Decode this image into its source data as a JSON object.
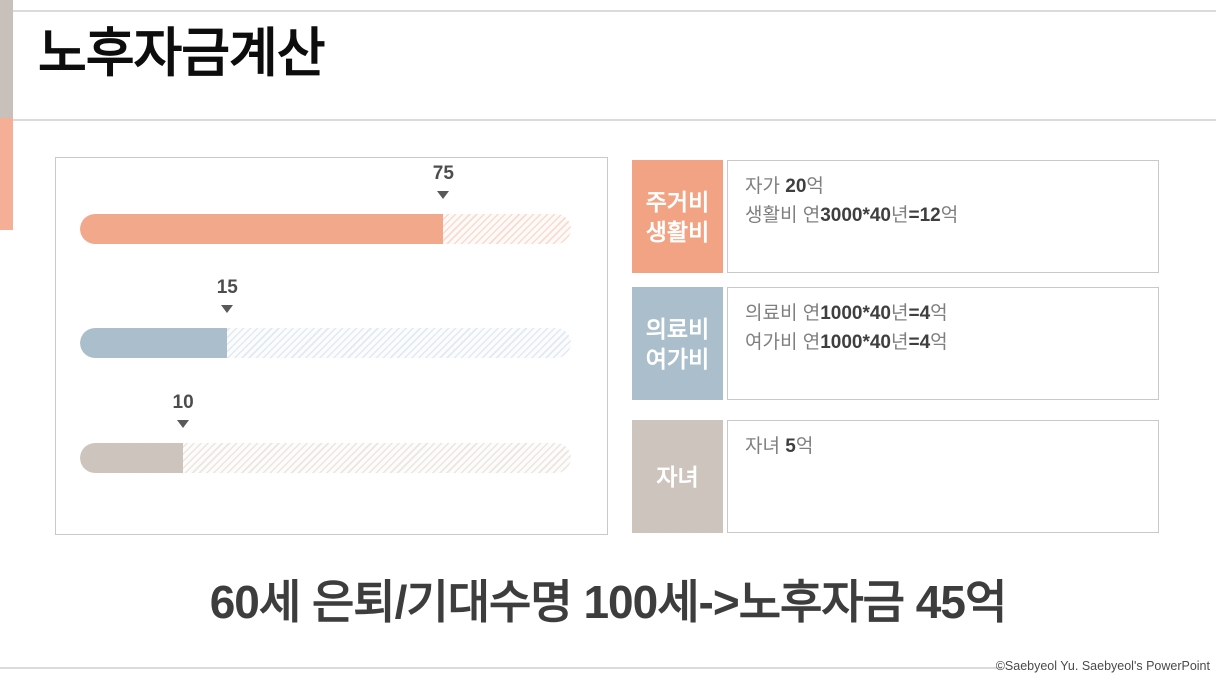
{
  "title": "노후자금계산",
  "summary": "60세 은퇴/기대수명 100세->노후자금 45억",
  "copyright": "©Saebyeol Yu.  Saebyeol's PowerPoint",
  "colors": {
    "salmon": "#F2A88B",
    "bluegray": "#AABFCB",
    "tan": "#CDC5BD",
    "accent_gray": "#C8C0BB",
    "accent_salmon": "#F5AF97",
    "divider": "#DBDBDB",
    "panel_border": "#C9C9C9",
    "text_dark": "#3F3F3F",
    "text_gray": "#7F7F7F",
    "marker": "#595959"
  },
  "chart_data": {
    "type": "bar",
    "orientation": "horizontal",
    "track_range": [
      0,
      100
    ],
    "grid": false,
    "items": [
      {
        "label": "75",
        "value": 75,
        "fill_pct": 74,
        "color": "#F2A88B",
        "hatch": "#F6DCD0",
        "hatch_bg": "#FEFAF8"
      },
      {
        "label": "15",
        "value": 15,
        "fill_pct": 30,
        "color": "#AABFCB",
        "hatch": "#E2EAEF",
        "hatch_bg": "#FBFCFD"
      },
      {
        "label": "10",
        "value": 10,
        "fill_pct": 21,
        "color": "#CDC5BD",
        "hatch": "#EAE6E1",
        "hatch_bg": "#FDFCFB"
      }
    ]
  },
  "info_boxes": [
    {
      "label_lines": [
        "주거비",
        "생활비"
      ],
      "color": "#F2A383",
      "lines": [
        [
          {
            "t": "자가 ",
            "b": false
          },
          {
            "t": "20",
            "b": true
          },
          {
            "t": "억",
            "b": false
          }
        ],
        [
          {
            "t": "생활비 연",
            "b": false
          },
          {
            "t": "3000*40",
            "b": true
          },
          {
            "t": "년",
            "b": false
          },
          {
            "t": "=12",
            "b": true
          },
          {
            "t": "억",
            "b": false
          }
        ]
      ]
    },
    {
      "label_lines": [
        "의료비",
        "여가비"
      ],
      "color": "#AABFCB",
      "lines": [
        [
          {
            "t": "의료비 연",
            "b": false
          },
          {
            "t": "1000*40",
            "b": true
          },
          {
            "t": "년",
            "b": false
          },
          {
            "t": "=4",
            "b": true
          },
          {
            "t": "억",
            "b": false
          }
        ],
        [
          {
            "t": "여가비 연",
            "b": false
          },
          {
            "t": "1000*40",
            "b": true
          },
          {
            "t": "년",
            "b": false
          },
          {
            "t": "=4",
            "b": true
          },
          {
            "t": "억",
            "b": false
          }
        ]
      ]
    },
    {
      "label_lines": [
        "자녀"
      ],
      "color": "#CDC5BD",
      "lines": [
        [
          {
            "t": "자녀 ",
            "b": false
          },
          {
            "t": "5",
            "b": true
          },
          {
            "t": "억",
            "b": false
          }
        ]
      ]
    }
  ]
}
